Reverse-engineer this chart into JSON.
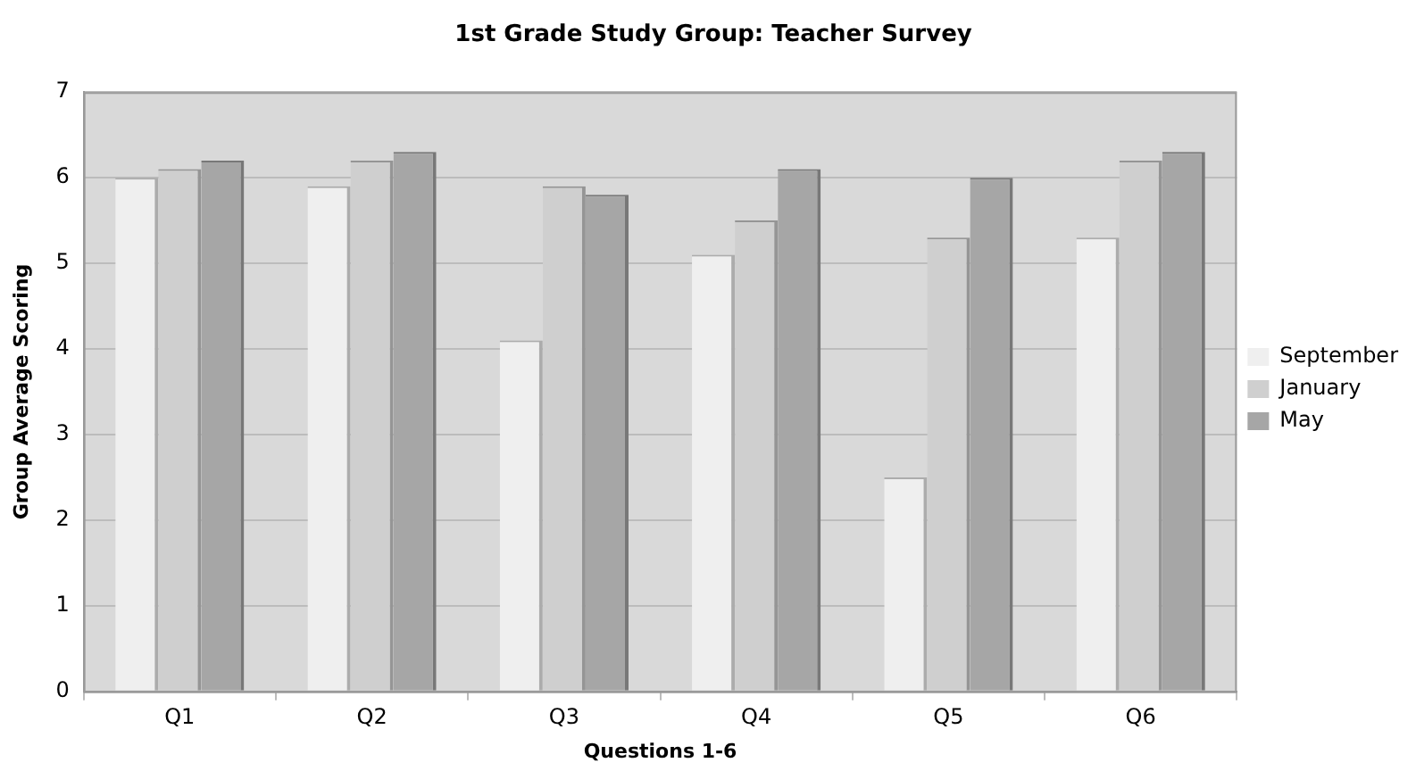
{
  "chart_data": {
    "type": "bar",
    "title": "1st Grade Study Group: Teacher Survey",
    "xlabel": "Questions 1-6",
    "ylabel": "Group Average Scoring",
    "categories": [
      "Q1",
      "Q2",
      "Q3",
      "Q4",
      "Q5",
      "Q6"
    ],
    "series": [
      {
        "name": "September",
        "color": "#efefef",
        "values": [
          6.0,
          5.9,
          4.1,
          5.1,
          2.5,
          5.3
        ]
      },
      {
        "name": "January",
        "color": "#cfcfcf",
        "values": [
          6.1,
          6.2,
          5.9,
          5.5,
          5.3,
          6.2
        ]
      },
      {
        "name": "May",
        "color": "#a6a6a6",
        "values": [
          6.2,
          6.3,
          5.8,
          6.1,
          6.0,
          6.3
        ]
      }
    ],
    "ylim": [
      0,
      7
    ],
    "yticks": [
      0,
      1,
      2,
      3,
      4,
      5,
      6,
      7
    ],
    "grid": "y",
    "legend": "right"
  }
}
